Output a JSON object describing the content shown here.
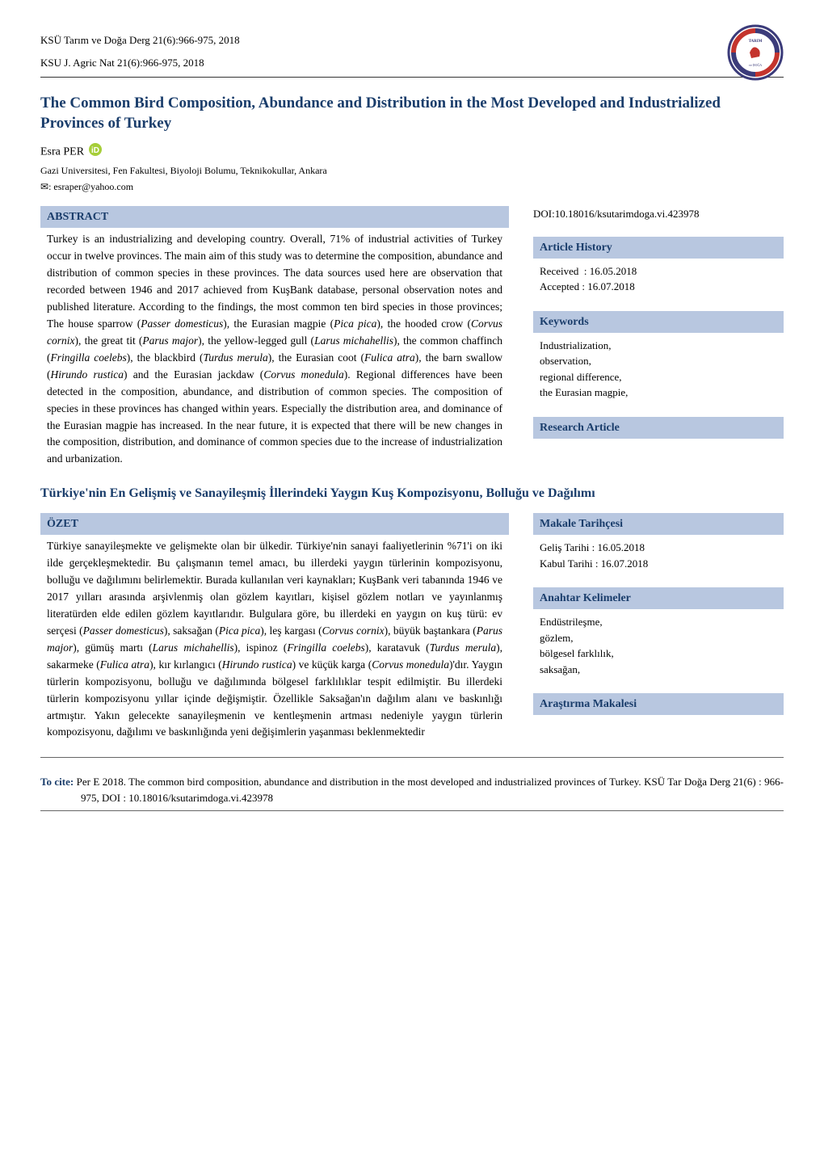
{
  "journal": {
    "line1": "KSÜ Tarım ve Doğa Derg 21(6):966-975, 2018",
    "line2": "KSU J. Agric Nat 21(6):966-975, 2018"
  },
  "logo": {
    "outer_color": "#3b3b7a",
    "inner_color": "#ffffff",
    "accent_color": "#c4342d",
    "text_top": "TARIM",
    "text_bottom": "ve DOĞA DERGİSİ"
  },
  "article": {
    "title_en": "The Common Bird Composition, Abundance and Distribution in the Most Developed and Industrialized Provinces of Turkey",
    "author": "Esra PER",
    "affiliation": "Gazi Universitesi, Fen Fakultesi, Biyoloji Bolumu, Teknikokullar, Ankara",
    "email": "esraper@yahoo.com",
    "email_icon": "✉"
  },
  "abstract_en": {
    "heading": "ABSTRACT",
    "text": "Turkey is an industrializing and developing country. Overall, 71% of industrial activities of Turkey occur in twelve provinces. The main aim of this study was to determine the composition, abundance and distribution of common species in these provinces. The data sources used here are observation that recorded between 1946 and 2017 achieved from KuşBank database, personal observation notes and published literature. According to the findings, the most common ten bird species in those provinces; The house sparrow (Passer domesticus), the Eurasian magpie (Pica pica), the hooded crow (Corvus cornix), the great tit (Parus major), the yellow-legged gull (Larus michahellis), the common chaffinch (Fringilla coelebs), the blackbird (Turdus merula), the Eurasian coot (Fulica atra), the barn swallow (Hirundo rustica) and the Eurasian jackdaw (Corvus monedula). Regional differences have been detected in the composition, abundance, and distribution of common species. The composition of species in these provinces has changed within years. Especially the distribution area, and dominance of the Eurasian magpie has increased. In the near future, it is expected that there will be new changes in the composition, distribution, and dominance of common species due to the increase of industrialization and urbanization."
  },
  "doi": "DOI:10.18016/ksutarimdoga.vi.423978",
  "history_en": {
    "heading": "Article History",
    "received_label": "Received",
    "received_date": "16.05.2018",
    "accepted_label": "Accepted",
    "accepted_date": "16.07.2018"
  },
  "keywords_en": {
    "heading": "Keywords",
    "items": [
      "Industrialization,",
      "observation,",
      "regional difference,",
      "the Eurasian magpie,"
    ]
  },
  "research_type_en": "Research Article",
  "title_tr": "Türkiye'nin En Gelişmiş ve Sanayileşmiş İllerindeki Yaygın Kuş Kompozisyonu, Bolluğu ve Dağılımı",
  "abstract_tr": {
    "heading": "ÖZET",
    "text": "Türkiye sanayileşmekte ve gelişmekte olan bir ülkedir. Türkiye'nin sanayi faaliyetlerinin %71'i on iki ilde gerçekleşmektedir. Bu çalışmanın temel amacı, bu illerdeki yaygın türlerinin kompozisyonu, bolluğu ve dağılımını belirlemektir. Burada kullanılan veri kaynakları; KuşBank veri tabanında 1946 ve 2017 yılları arasında arşivlenmiş olan gözlem kayıtları, kişisel gözlem notları ve yayınlanmış literatürden elde edilen gözlem kayıtlarıdır. Bulgulara göre, bu illerdeki en yaygın on kuş türü: ev serçesi (Passer domesticus), saksağan (Pica pica), leş kargası (Corvus cornix), büyük baştankara (Parus major), gümüş martı (Larus michahellis), ispinoz (Fringilla coelebs), karatavuk (Turdus merula), sakarmeke (Fulica atra), kır kırlangıcı (Hirundo rustica) ve küçük karga (Corvus monedula)'dır. Yaygın türlerin kompozisyonu, bolluğu ve dağılımında bölgesel farklılıklar tespit edilmiştir. Bu illerdeki türlerin kompozisyonu yıllar içinde değişmiştir. Özellikle Saksağan'ın dağılım alanı ve baskınlığı artmıştır. Yakın gelecekte sanayileşmenin ve kentleşmenin artması nedeniyle yaygın türlerin kompozisyonu, dağılımı ve baskınlığında yeni değişimlerin yaşanması beklenmektedir"
  },
  "history_tr": {
    "heading": "Makale Tarihçesi",
    "received_label": "Geliş Tarihi",
    "received_date": "16.05.2018",
    "accepted_label": "Kabul Tarihi",
    "accepted_date": "16.07.2018"
  },
  "keywords_tr": {
    "heading": "Anahtar Kelimeler",
    "items": [
      "Endüstrileşme,",
      "gözlem,",
      "bölgesel farklılık,",
      "saksağan,"
    ]
  },
  "research_type_tr": "Araştırma Makalesi",
  "citation": {
    "label": "To cite:",
    "text": "Per E 2018. The common bird composition, abundance and distribution in the most developed and industrialized provinces of Turkey. KSÜ Tar Doğa Derg  21(6) : 966-975, DOI : 10.18016/ksutarimdoga.vi.423978"
  },
  "colors": {
    "heading_bg": "#b8c7e0",
    "heading_fg": "#1a3d6b",
    "title_fg": "#1a3d6b",
    "orcid_green": "#a6ce39"
  }
}
